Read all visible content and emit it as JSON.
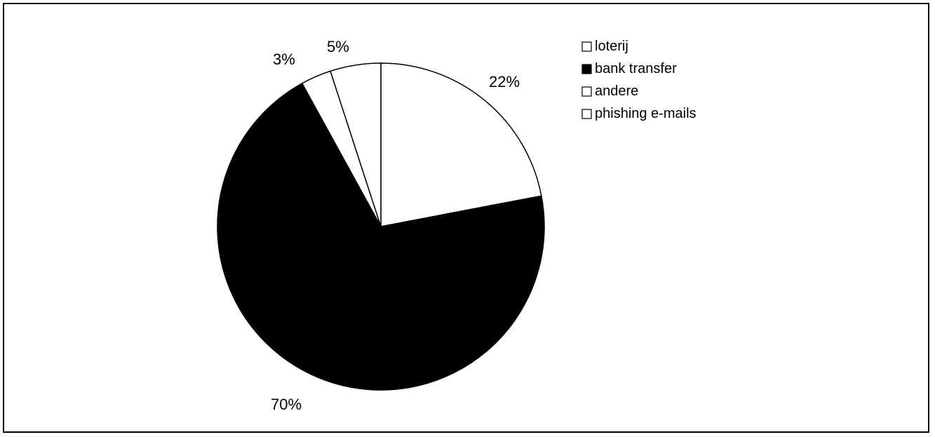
{
  "chart_data": {
    "type": "pie",
    "slices": [
      {
        "label": "loterij",
        "value": 22,
        "display": "22%",
        "color": "#ffffff"
      },
      {
        "label": "bank transfer",
        "value": 70,
        "display": "70%",
        "color": "#000000"
      },
      {
        "label": "andere",
        "value": 3,
        "display": "3%",
        "color": "#ffffff"
      },
      {
        "label": "phishing e-mails",
        "value": 5,
        "display": "5%",
        "color": "#ffffff"
      }
    ],
    "legend_position": "top-right",
    "title": ""
  }
}
